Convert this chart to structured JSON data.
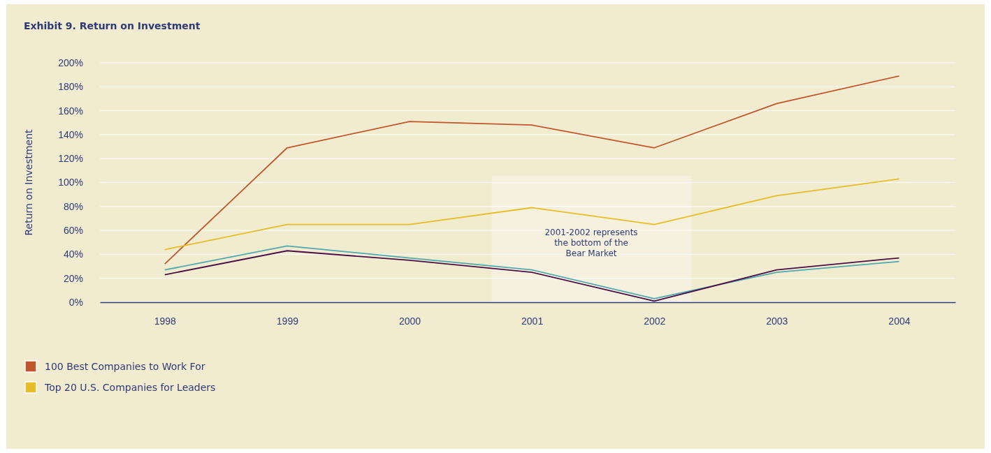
{
  "chart_data": {
    "type": "line",
    "title": "Exhibit 9. Return on Investment",
    "ylabel": "Return on Investment",
    "x": [
      1998,
      1999,
      2000,
      2001,
      2002,
      2003,
      2004
    ],
    "xlim": [
      1997.47,
      2004.46
    ],
    "xticks": [
      1998,
      1999,
      2000,
      2001,
      2002,
      2003,
      2004
    ],
    "ylim": [
      0,
      200
    ],
    "yticks": [
      {
        "value": 0,
        "label": "0%"
      },
      {
        "value": 20,
        "label": "20%"
      },
      {
        "value": 40,
        "label": "40%"
      },
      {
        "value": 60,
        "label": "60%"
      },
      {
        "value": 80,
        "label": "80%"
      },
      {
        "value": 100,
        "label": "100%"
      },
      {
        "value": 120,
        "label": "120%"
      },
      {
        "value": 140,
        "label": "140%"
      },
      {
        "value": 160,
        "label": "160%"
      },
      {
        "value": 180,
        "label": "180%"
      },
      {
        "value": 200,
        "label": "200%"
      }
    ],
    "grid": "y",
    "legend": "bottom left",
    "marker": "none",
    "line_style": "solid",
    "bands": [
      {
        "axis": "x",
        "from": 2000.67,
        "to": 2002.3,
        "label": "2001-2002 represents the bottom of the Bear Market",
        "color": "#f7f3e4"
      }
    ],
    "series": [
      {
        "name": "100 Best Companies to Work For",
        "color": "#c0562a",
        "values": [
          32,
          129,
          151,
          148,
          129,
          166,
          189
        ]
      },
      {
        "name": "Top 20 U.S. Companies for Leaders",
        "color": "#e6bd25",
        "values": [
          44,
          65,
          65,
          79,
          65,
          89,
          103
        ]
      },
      {
        "color": "#4fa9ad",
        "values": [
          27,
          47,
          37,
          27,
          3,
          25,
          34
        ]
      },
      {
        "color": "#4a0e47",
        "values": [
          23,
          43,
          35,
          25,
          1,
          27,
          37
        ]
      }
    ]
  }
}
